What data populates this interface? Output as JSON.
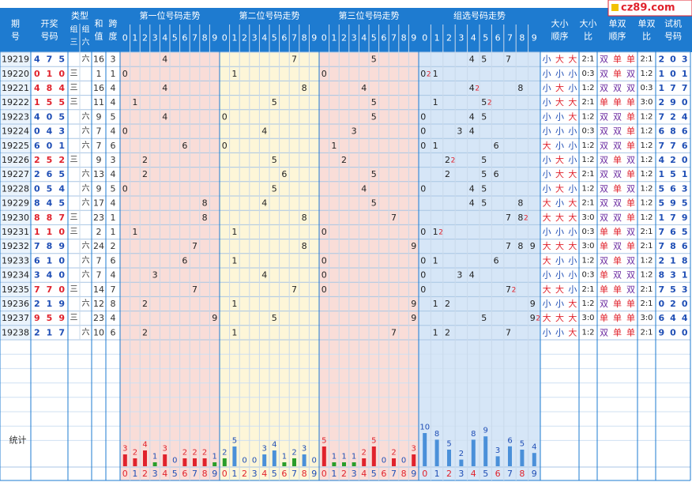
{
  "site_badge": "cz89.com",
  "header": {
    "issue": "期号",
    "draw": "开奖号码",
    "type": "类型",
    "type_sub": [
      "组三",
      "组六"
    ],
    "sum": "和值",
    "span": "跨度",
    "pos1": "第一位号码走势",
    "pos2": "第二位号码走势",
    "pos3": "第三位号码走势",
    "group": "组选号码走势",
    "size_order": "大小顺序",
    "size_ratio": "大小比",
    "oe_order": "单双顺序",
    "oe_ratio": "单双比",
    "trial": "试机号码",
    "digits": [
      "0",
      "1",
      "2",
      "3",
      "4",
      "5",
      "6",
      "7",
      "8",
      "9"
    ]
  },
  "stats_label": "统计",
  "chart_data": {
    "type": "table",
    "columns": [
      "issue",
      "draw",
      "type",
      "sum",
      "span",
      "size_order",
      "size_ratio",
      "oe_order",
      "oe_ratio",
      "trial"
    ],
    "rows": [
      {
        "issue": "19219",
        "draw": [
          4,
          7,
          5
        ],
        "type": "六",
        "sum": 16,
        "span": 3,
        "size_order": "小大大",
        "size_ratio": "2:1",
        "oe_order": "双单单",
        "oe_ratio": "2:1",
        "trial": [
          2,
          0,
          3
        ]
      },
      {
        "issue": "19220",
        "draw": [
          0,
          1,
          0
        ],
        "type": "三",
        "sum": 1,
        "span": 1,
        "size_order": "小小小",
        "size_ratio": "0:3",
        "oe_order": "双单双",
        "oe_ratio": "1:2",
        "trial": [
          1,
          0,
          1
        ]
      },
      {
        "issue": "19221",
        "draw": [
          4,
          8,
          4
        ],
        "type": "三",
        "sum": 16,
        "span": 4,
        "size_order": "小大小",
        "size_ratio": "1:2",
        "oe_order": "双双双",
        "oe_ratio": "0:3",
        "trial": [
          1,
          7,
          7
        ]
      },
      {
        "issue": "19222",
        "draw": [
          1,
          5,
          5
        ],
        "type": "三",
        "sum": 11,
        "span": 4,
        "size_order": "小大大",
        "size_ratio": "2:1",
        "oe_order": "单单单",
        "oe_ratio": "3:0",
        "trial": [
          2,
          9,
          0
        ]
      },
      {
        "issue": "19223",
        "draw": [
          4,
          0,
          5
        ],
        "type": "六",
        "sum": 9,
        "span": 5,
        "size_order": "小小大",
        "size_ratio": "1:2",
        "oe_order": "双双单",
        "oe_ratio": "1:2",
        "trial": [
          7,
          2,
          4
        ]
      },
      {
        "issue": "19224",
        "draw": [
          0,
          4,
          3
        ],
        "type": "六",
        "sum": 7,
        "span": 4,
        "size_order": "小小小",
        "size_ratio": "0:3",
        "oe_order": "双双单",
        "oe_ratio": "1:2",
        "trial": [
          6,
          8,
          6
        ]
      },
      {
        "issue": "19225",
        "draw": [
          6,
          0,
          1
        ],
        "type": "六",
        "sum": 7,
        "span": 6,
        "size_order": "大小小",
        "size_ratio": "1:2",
        "oe_order": "双双单",
        "oe_ratio": "1:2",
        "trial": [
          7,
          7,
          6
        ]
      },
      {
        "issue": "19226",
        "draw": [
          2,
          5,
          2
        ],
        "type": "三",
        "sum": 9,
        "span": 3,
        "size_order": "小大小",
        "size_ratio": "1:2",
        "oe_order": "双单双",
        "oe_ratio": "1:2",
        "trial": [
          4,
          2,
          0
        ]
      },
      {
        "issue": "19227",
        "draw": [
          2,
          6,
          5
        ],
        "type": "六",
        "sum": 13,
        "span": 4,
        "size_order": "小大大",
        "size_ratio": "2:1",
        "oe_order": "双双单",
        "oe_ratio": "1:2",
        "trial": [
          1,
          5,
          1
        ]
      },
      {
        "issue": "19228",
        "draw": [
          0,
          5,
          4
        ],
        "type": "六",
        "sum": 9,
        "span": 5,
        "size_order": "小大小",
        "size_ratio": "1:2",
        "oe_order": "双单双",
        "oe_ratio": "1:2",
        "trial": [
          5,
          6,
          3
        ]
      },
      {
        "issue": "19229",
        "draw": [
          8,
          4,
          5
        ],
        "type": "六",
        "sum": 17,
        "span": 4,
        "size_order": "大小大",
        "size_ratio": "2:1",
        "oe_order": "双双单",
        "oe_ratio": "1:2",
        "trial": [
          5,
          9,
          5
        ]
      },
      {
        "issue": "19230",
        "draw": [
          8,
          8,
          7
        ],
        "type": "三",
        "sum": 23,
        "span": 1,
        "size_order": "大大大",
        "size_ratio": "3:0",
        "oe_order": "双双单",
        "oe_ratio": "1:2",
        "trial": [
          1,
          7,
          9
        ]
      },
      {
        "issue": "19231",
        "draw": [
          1,
          1,
          0
        ],
        "type": "三",
        "sum": 2,
        "span": 1,
        "size_order": "小小小",
        "size_ratio": "0:3",
        "oe_order": "单单双",
        "oe_ratio": "2:1",
        "trial": [
          7,
          6,
          5
        ]
      },
      {
        "issue": "19232",
        "draw": [
          7,
          8,
          9
        ],
        "type": "六",
        "sum": 24,
        "span": 2,
        "size_order": "大大大",
        "size_ratio": "3:0",
        "oe_order": "单双单",
        "oe_ratio": "2:1",
        "trial": [
          7,
          8,
          6
        ]
      },
      {
        "issue": "19233",
        "draw": [
          6,
          1,
          0
        ],
        "type": "六",
        "sum": 7,
        "span": 6,
        "size_order": "大小小",
        "size_ratio": "1:2",
        "oe_order": "双单双",
        "oe_ratio": "1:2",
        "trial": [
          2,
          1,
          8
        ]
      },
      {
        "issue": "19234",
        "draw": [
          3,
          4,
          0
        ],
        "type": "六",
        "sum": 7,
        "span": 4,
        "size_order": "小小小",
        "size_ratio": "0:3",
        "oe_order": "单双双",
        "oe_ratio": "1:2",
        "trial": [
          8,
          3,
          1
        ]
      },
      {
        "issue": "19235",
        "draw": [
          7,
          7,
          0
        ],
        "type": "三",
        "sum": 14,
        "span": 7,
        "size_order": "大大小",
        "size_ratio": "2:1",
        "oe_order": "单单双",
        "oe_ratio": "2:1",
        "trial": [
          7,
          5,
          3
        ]
      },
      {
        "issue": "19236",
        "draw": [
          2,
          1,
          9
        ],
        "type": "六",
        "sum": 12,
        "span": 8,
        "size_order": "小小大",
        "size_ratio": "1:2",
        "oe_order": "双单单",
        "oe_ratio": "2:1",
        "trial": [
          0,
          2,
          0
        ]
      },
      {
        "issue": "19237",
        "draw": [
          9,
          5,
          9
        ],
        "type": "三",
        "sum": 23,
        "span": 4,
        "size_order": "大大大",
        "size_ratio": "3:0",
        "oe_order": "单单单",
        "oe_ratio": "3:0",
        "trial": [
          6,
          4,
          4
        ]
      },
      {
        "issue": "19238",
        "draw": [
          2,
          1,
          7
        ],
        "type": "六",
        "sum": 10,
        "span": 6,
        "size_order": "小小大",
        "size_ratio": "1:2",
        "oe_order": "双单单",
        "oe_ratio": "2:1",
        "trial": [
          9,
          0,
          0
        ]
      }
    ],
    "stats": {
      "pos1": [
        3,
        2,
        4,
        1,
        3,
        0,
        2,
        2,
        2,
        1
      ],
      "pos2": [
        2,
        5,
        0,
        0,
        3,
        4,
        1,
        2,
        3,
        0
      ],
      "pos3": [
        5,
        1,
        1,
        1,
        2,
        5,
        0,
        2,
        0,
        3
      ],
      "group": [
        10,
        8,
        5,
        2,
        8,
        9,
        3,
        6,
        5,
        4
      ]
    },
    "colors": {
      "header_bg": "#1e7bd0",
      "band_pos1": "#f9ddd8",
      "band_pos2": "#fdf6d8",
      "band_pos3": "#f9ddd8",
      "band_group": "#d6e6f7",
      "digit_red": "#e0222c",
      "digit_blue": "#1f4eb5",
      "bar_red": "#e0222c",
      "bar_green": "#2a9d2a",
      "bar_blue": "#4a90d9"
    }
  }
}
